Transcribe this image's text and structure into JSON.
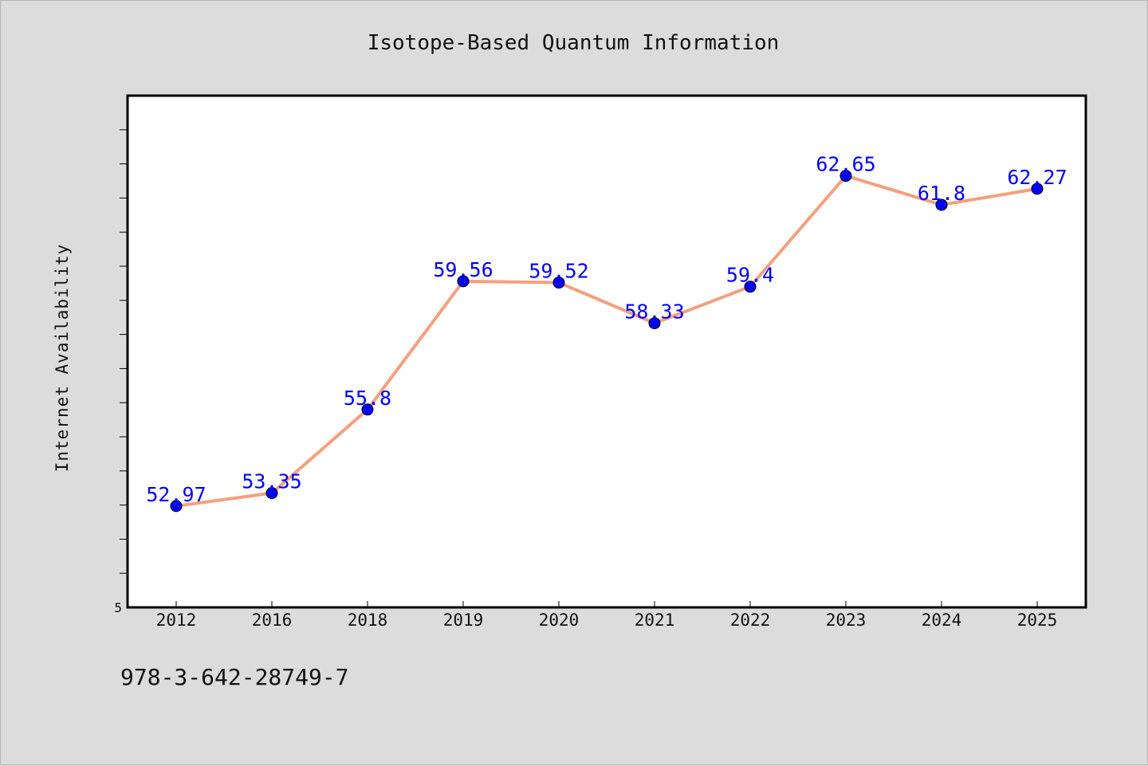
{
  "chart_data": {
    "type": "line",
    "title": "Isotope-Based Quantum Information",
    "xlabel": "",
    "ylabel": "Internet Availability",
    "categories": [
      "2012",
      "2016",
      "2018",
      "2019",
      "2020",
      "2021",
      "2022",
      "2023",
      "2024",
      "2025"
    ],
    "series": [
      {
        "values": [
          52.97,
          53.35,
          55.8,
          59.56,
          59.52,
          58.33,
          59.4,
          62.65,
          61.8,
          62.27
        ]
      }
    ],
    "data_labels": [
      "52.97",
      "53.35",
      "55.8",
      "59.56",
      "59.52",
      "58.33",
      "59.4",
      "62.65",
      "61.8",
      "62.27"
    ],
    "y_tick_labels": [
      "5"
    ],
    "ylim": [
      50.0,
      65.0
    ],
    "grid": false,
    "colors": {
      "line": "#f4a07e",
      "marker": "#0000ff",
      "label": "#0000ff",
      "background": "#dcdcdc",
      "plot_background": "#ffffff"
    }
  },
  "footer": {
    "isbn": "978-3-642-28749-7"
  }
}
